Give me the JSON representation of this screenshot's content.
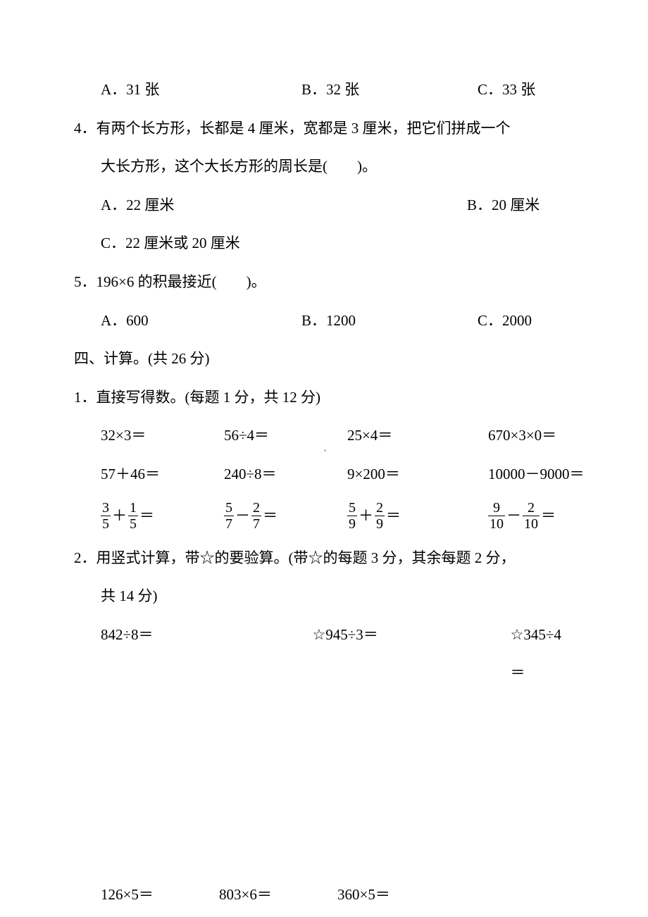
{
  "q3_choices": {
    "a": "A．31 张",
    "b": "B．32 张",
    "c": "C．33 张"
  },
  "q4": {
    "line1": "4．有两个长方形，长都是 4 厘米，宽都是 3 厘米，把它们拼成一个",
    "line2": "大长方形，这个大长方形的周长是(　　)。",
    "a": "A．22 厘米",
    "b": "B．20 厘米",
    "c": "C．22 厘米或 20 厘米"
  },
  "q5": {
    "text": "5．196×6 的积最接近(　　)。",
    "a": "A．600",
    "b": "B．1200",
    "c": "C．2000"
  },
  "section4": "四、计算。(共 26 分)",
  "sub1": {
    "title": "1．直接写得数。(每题 1 分，共 12 分)",
    "row1": {
      "c1": "32×3＝",
      "c2": "56÷4＝",
      "c3": "25×4＝",
      "c4": "670×3×0＝"
    },
    "row2": {
      "c1": "57＋46＝",
      "c2": "240÷8＝",
      "c3": "9×200＝",
      "c4": "10000－9000＝"
    },
    "row3": {
      "f1": {
        "n1": "3",
        "d1": "5",
        "op": "＋",
        "n2": "1",
        "d2": "5"
      },
      "f2": {
        "n1": "5",
        "d1": "7",
        "op": "－",
        "n2": "2",
        "d2": "7"
      },
      "f3": {
        "n1": "5",
        "d1": "9",
        "op": "＋",
        "n2": "2",
        "d2": "9"
      },
      "f4": {
        "n1": "9",
        "d1": "10",
        "op": "－",
        "n2": "2",
        "d2": "10"
      },
      "eq": "＝"
    }
  },
  "sub2": {
    "line1": "2．用竖式计算，带☆的要验算。(带☆的每题 3 分，其余每题 2 分，",
    "line2": "共 14 分)",
    "row1": {
      "c1": "842÷8＝",
      "c2": "☆945÷3＝",
      "c3": "☆345÷4＝"
    },
    "row2": {
      "c1": "126×5＝",
      "c2": "803×6＝",
      "c3": "360×5＝"
    }
  }
}
